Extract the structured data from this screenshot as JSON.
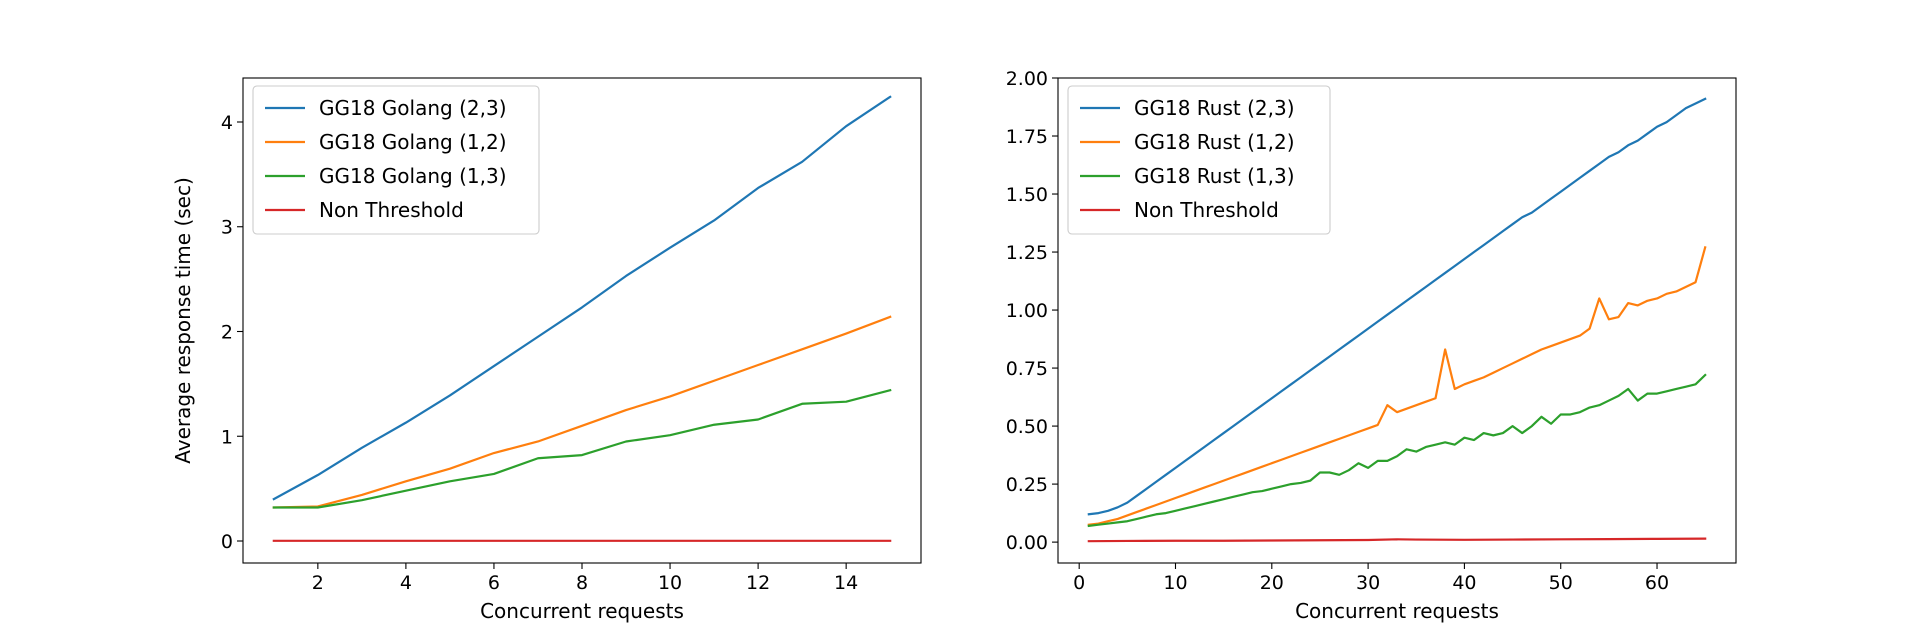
{
  "chart_data": [
    {
      "type": "line",
      "title": "",
      "xlabel": "Concurrent requests",
      "ylabel": "Average response time (sec)",
      "xlim": [
        0.3,
        15.7
      ],
      "ylim": [
        -0.21,
        4.42
      ],
      "xticks": [
        2,
        4,
        6,
        8,
        10,
        12,
        14
      ],
      "yticks": [
        0,
        1,
        2,
        3,
        4
      ],
      "ytick_decimals": 0,
      "grid": false,
      "legend_position": "top-left",
      "series": [
        {
          "name": "GG18 Golang (2,3)",
          "color": "#1f77b4",
          "x": [
            1,
            2,
            3,
            4,
            5,
            6,
            7,
            8,
            9,
            10,
            11,
            12,
            13,
            14,
            15
          ],
          "y": [
            0.4,
            0.63,
            0.89,
            1.13,
            1.39,
            1.67,
            1.95,
            2.23,
            2.53,
            2.8,
            3.06,
            3.37,
            3.62,
            3.96,
            4.24
          ]
        },
        {
          "name": "GG18 Golang (1,2)",
          "color": "#ff7f0e",
          "x": [
            1,
            2,
            3,
            4,
            5,
            6,
            7,
            8,
            9,
            10,
            11,
            12,
            13,
            14,
            15
          ],
          "y": [
            0.32,
            0.33,
            0.44,
            0.57,
            0.69,
            0.84,
            0.95,
            1.1,
            1.25,
            1.38,
            1.53,
            1.68,
            1.83,
            1.98,
            2.14
          ]
        },
        {
          "name": "GG18 Golang (1,3)",
          "color": "#2ca02c",
          "x": [
            1,
            2,
            3,
            4,
            5,
            6,
            7,
            8,
            9,
            10,
            11,
            12,
            13,
            14,
            15
          ],
          "y": [
            0.32,
            0.32,
            0.39,
            0.48,
            0.57,
            0.64,
            0.79,
            0.82,
            0.95,
            1.01,
            1.11,
            1.16,
            1.31,
            1.33,
            1.44
          ]
        },
        {
          "name": "Non Threshold",
          "color": "#d62728",
          "x": [
            1,
            2,
            3,
            4,
            5,
            6,
            7,
            8,
            9,
            10,
            11,
            12,
            13,
            14,
            15
          ],
          "y": [
            0.002,
            0.002,
            0.002,
            0.002,
            0.002,
            0.002,
            0.002,
            0.002,
            0.002,
            0.002,
            0.002,
            0.002,
            0.002,
            0.002,
            0.002
          ]
        }
      ]
    },
    {
      "type": "line",
      "title": "",
      "xlabel": "Concurrent requests",
      "ylabel": "",
      "xlim": [
        -2.2,
        68.2
      ],
      "ylim": [
        -0.09,
        2.0
      ],
      "xticks": [
        0,
        10,
        20,
        30,
        40,
        50,
        60
      ],
      "yticks": [
        0.0,
        0.25,
        0.5,
        0.75,
        1.0,
        1.25,
        1.5,
        1.75,
        2.0
      ],
      "ytick_decimals": 2,
      "grid": false,
      "legend_position": "top-left",
      "series": [
        {
          "name": "GG18 Rust (2,3)",
          "color": "#1f77b4",
          "x": [
            1,
            2,
            3,
            4,
            5,
            6,
            7,
            8,
            9,
            10,
            11,
            12,
            13,
            14,
            15,
            16,
            17,
            18,
            19,
            20,
            21,
            22,
            23,
            24,
            25,
            26,
            27,
            28,
            29,
            30,
            31,
            32,
            33,
            34,
            35,
            36,
            37,
            38,
            39,
            40,
            41,
            42,
            43,
            44,
            45,
            46,
            47,
            48,
            49,
            50,
            51,
            52,
            53,
            54,
            55,
            56,
            57,
            58,
            59,
            60,
            61,
            62,
            63,
            64,
            65
          ],
          "y": [
            0.12,
            0.125,
            0.135,
            0.15,
            0.17,
            0.2,
            0.23,
            0.26,
            0.29,
            0.32,
            0.35,
            0.38,
            0.41,
            0.44,
            0.47,
            0.5,
            0.53,
            0.56,
            0.59,
            0.62,
            0.65,
            0.68,
            0.71,
            0.74,
            0.77,
            0.8,
            0.83,
            0.86,
            0.89,
            0.92,
            0.95,
            0.98,
            1.01,
            1.04,
            1.07,
            1.1,
            1.13,
            1.16,
            1.19,
            1.22,
            1.25,
            1.28,
            1.31,
            1.34,
            1.37,
            1.4,
            1.42,
            1.45,
            1.48,
            1.51,
            1.54,
            1.57,
            1.6,
            1.63,
            1.66,
            1.68,
            1.71,
            1.73,
            1.76,
            1.79,
            1.81,
            1.84,
            1.87,
            1.89,
            1.91
          ]
        },
        {
          "name": "GG18 Rust (1,2)",
          "color": "#ff7f0e",
          "x": [
            1,
            2,
            3,
            4,
            5,
            6,
            7,
            8,
            9,
            10,
            11,
            12,
            13,
            14,
            15,
            16,
            17,
            18,
            19,
            20,
            21,
            22,
            23,
            24,
            25,
            26,
            27,
            28,
            29,
            30,
            31,
            32,
            33,
            34,
            35,
            36,
            37,
            38,
            39,
            40,
            41,
            42,
            43,
            44,
            45,
            46,
            47,
            48,
            49,
            50,
            51,
            52,
            53,
            54,
            55,
            56,
            57,
            58,
            59,
            60,
            61,
            62,
            63,
            64,
            65
          ],
          "y": [
            0.075,
            0.08,
            0.09,
            0.1,
            0.115,
            0.13,
            0.145,
            0.16,
            0.175,
            0.19,
            0.205,
            0.22,
            0.235,
            0.25,
            0.265,
            0.28,
            0.295,
            0.31,
            0.325,
            0.34,
            0.355,
            0.37,
            0.385,
            0.4,
            0.415,
            0.43,
            0.445,
            0.46,
            0.475,
            0.49,
            0.505,
            0.59,
            0.56,
            0.575,
            0.59,
            0.605,
            0.62,
            0.83,
            0.66,
            0.68,
            0.695,
            0.71,
            0.73,
            0.75,
            0.77,
            0.79,
            0.81,
            0.83,
            0.845,
            0.86,
            0.875,
            0.89,
            0.92,
            1.05,
            0.96,
            0.97,
            1.03,
            1.02,
            1.04,
            1.05,
            1.07,
            1.08,
            1.1,
            1.12,
            1.27
          ]
        },
        {
          "name": "GG18 Rust (1,3)",
          "color": "#2ca02c",
          "x": [
            1,
            2,
            3,
            4,
            5,
            6,
            7,
            8,
            9,
            10,
            11,
            12,
            13,
            14,
            15,
            16,
            17,
            18,
            19,
            20,
            21,
            22,
            23,
            24,
            25,
            26,
            27,
            28,
            29,
            30,
            31,
            32,
            33,
            34,
            35,
            36,
            37,
            38,
            39,
            40,
            41,
            42,
            43,
            44,
            45,
            46,
            47,
            48,
            49,
            50,
            51,
            52,
            53,
            54,
            55,
            56,
            57,
            58,
            59,
            60,
            61,
            62,
            63,
            64,
            65
          ],
          "y": [
            0.07,
            0.075,
            0.08,
            0.085,
            0.09,
            0.1,
            0.11,
            0.12,
            0.125,
            0.135,
            0.145,
            0.155,
            0.165,
            0.175,
            0.185,
            0.195,
            0.205,
            0.215,
            0.22,
            0.23,
            0.24,
            0.25,
            0.255,
            0.265,
            0.3,
            0.3,
            0.29,
            0.31,
            0.34,
            0.32,
            0.35,
            0.35,
            0.37,
            0.4,
            0.39,
            0.41,
            0.42,
            0.43,
            0.42,
            0.45,
            0.44,
            0.47,
            0.46,
            0.47,
            0.5,
            0.47,
            0.5,
            0.54,
            0.51,
            0.55,
            0.55,
            0.56,
            0.58,
            0.59,
            0.61,
            0.63,
            0.66,
            0.61,
            0.64,
            0.64,
            0.65,
            0.66,
            0.67,
            0.68,
            0.72
          ]
        },
        {
          "name": "Non Threshold",
          "color": "#d62728",
          "x": [
            1,
            5,
            10,
            15,
            20,
            25,
            30,
            33,
            35,
            40,
            45,
            50,
            55,
            60,
            65
          ],
          "y": [
            0.004,
            0.005,
            0.006,
            0.006,
            0.007,
            0.008,
            0.009,
            0.012,
            0.011,
            0.01,
            0.011,
            0.012,
            0.013,
            0.014,
            0.015
          ]
        }
      ]
    }
  ]
}
